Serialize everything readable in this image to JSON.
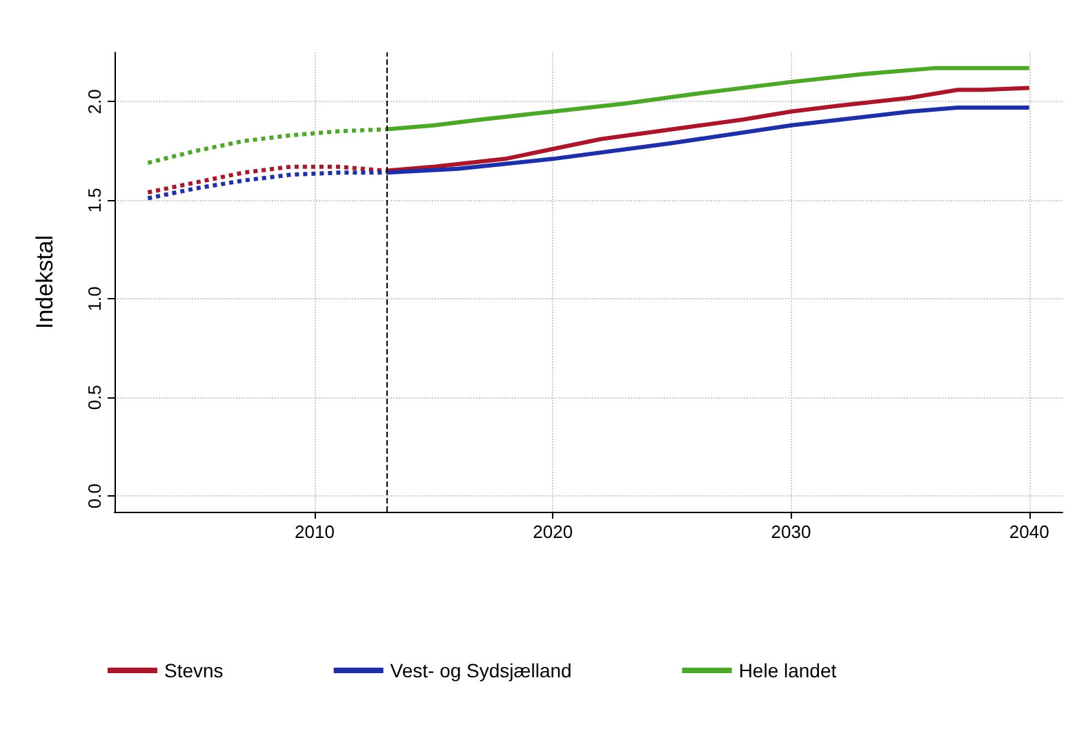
{
  "chart_data": {
    "type": "line",
    "ylabel": "Indekstal",
    "xlim": [
      2001.6,
      2041.4
    ],
    "xticks": [
      2010,
      2020,
      2030,
      2040
    ],
    "ylim": [
      -0.08,
      2.25
    ],
    "yticks": [
      {
        "value": 0,
        "label": "0.0"
      },
      0.5,
      {
        "value": 1,
        "label": "1.0"
      },
      1.5,
      {
        "value": 2,
        "label": "2.0"
      }
    ],
    "grid": true,
    "legend": "bottom",
    "marker": "none",
    "ref_lines": [
      {
        "axis": "x",
        "value": 2013,
        "color": "#000000",
        "line_style": "dashed"
      }
    ],
    "series": [
      {
        "name": "Stevns",
        "color": "#a8172b",
        "line_style": "solid",
        "x": [
          2013,
          2015,
          2018,
          2020,
          2022,
          2025,
          2028,
          2030,
          2032,
          2035,
          2037,
          2038,
          2040
        ],
        "values": [
          1.65,
          1.67,
          1.71,
          1.76,
          1.81,
          1.86,
          1.91,
          1.95,
          1.98,
          2.02,
          2.06,
          2.06,
          2.07
        ]
      },
      {
        "name": "Vest- og Sydsjælland",
        "color": "#1f2fa6",
        "line_style": "solid",
        "x": [
          2013,
          2016,
          2020,
          2025,
          2030,
          2035,
          2037,
          2040
        ],
        "values": [
          1.64,
          1.66,
          1.71,
          1.79,
          1.88,
          1.95,
          1.97,
          1.97
        ]
      },
      {
        "name": "Hele landet",
        "color": "#4ea72a",
        "line_style": "solid",
        "x": [
          2013,
          2015,
          2017,
          2020,
          2023,
          2026,
          2030,
          2033,
          2036,
          2040
        ],
        "values": [
          1.86,
          1.88,
          1.91,
          1.95,
          1.99,
          2.04,
          2.1,
          2.14,
          2.17,
          2.17
        ]
      },
      {
        "color": "#a8172b",
        "line_style": "dotted",
        "x": [
          2003,
          2005,
          2007,
          2009,
          2011,
          2013
        ],
        "values": [
          1.54,
          1.59,
          1.64,
          1.67,
          1.67,
          1.65
        ]
      },
      {
        "color": "#1f2fa6",
        "line_style": "dotted",
        "x": [
          2003,
          2005,
          2007,
          2009,
          2011,
          2013
        ],
        "values": [
          1.51,
          1.56,
          1.6,
          1.63,
          1.64,
          1.64
        ]
      },
      {
        "color": "#4ea72a",
        "line_style": "dotted",
        "x": [
          2003,
          2005,
          2007,
          2009,
          2011,
          2013
        ],
        "values": [
          1.69,
          1.75,
          1.8,
          1.83,
          1.85,
          1.86
        ]
      }
    ]
  }
}
